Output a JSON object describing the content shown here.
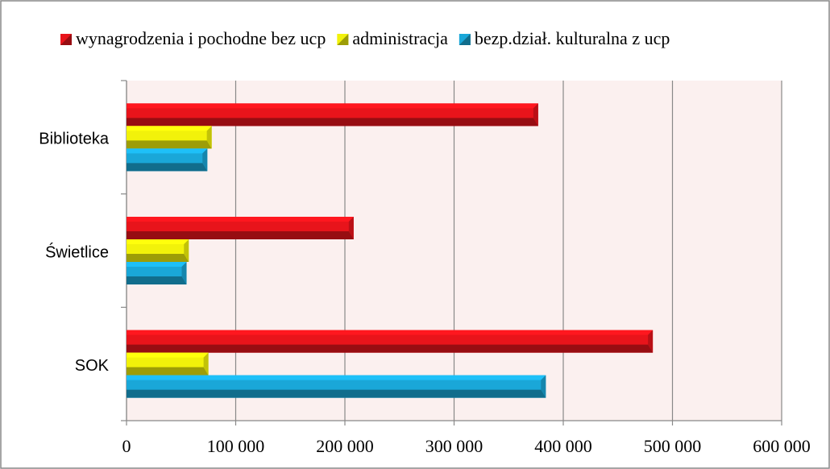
{
  "chart_data": {
    "type": "hbar",
    "categories": [
      "Biblioteka",
      "Świetlice",
      "SOK"
    ],
    "series": [
      {
        "name": "wynagrodzenia i pochodne bez ucp",
        "color": "#e8141b",
        "values": [
          377000,
          208000,
          482000
        ]
      },
      {
        "name": "administracja",
        "color": "#f2f20a",
        "values": [
          78000,
          57000,
          75000
        ]
      },
      {
        "name": "bezp.dział. kulturalna z ucp",
        "color": "#1aa7d8",
        "values": [
          74000,
          55000,
          384000
        ]
      }
    ],
    "xlim": [
      0,
      600000
    ],
    "xticks": [
      0,
      {
        "value": 100000,
        "label": "100 000"
      },
      {
        "value": 200000,
        "label": "200 000"
      },
      {
        "value": 300000,
        "label": "300 000"
      },
      {
        "value": 400000,
        "label": "400 000"
      },
      {
        "value": 500000,
        "label": "500 000"
      },
      {
        "value": 600000,
        "label": "600 000"
      }
    ],
    "grid": true,
    "legend": "top"
  }
}
